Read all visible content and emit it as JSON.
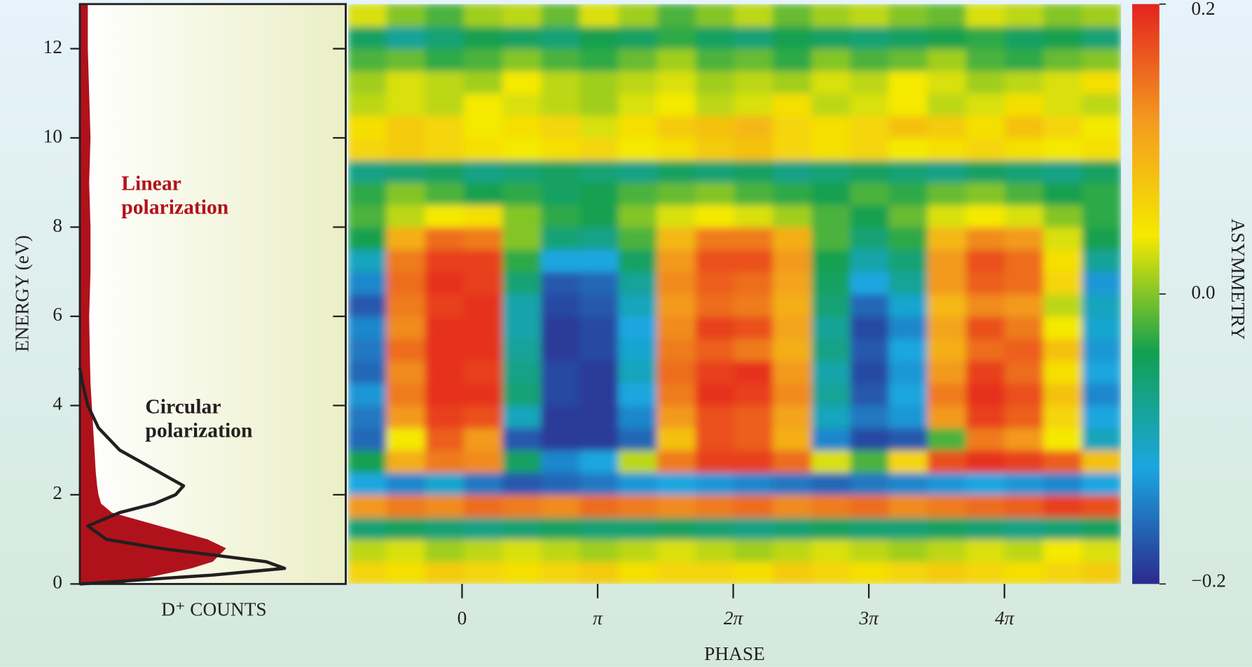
{
  "chart_data": [
    {
      "type": "line",
      "ylabel": "ENERGY (eV)",
      "xlabel": "D⁺ COUNTS",
      "ylim": [
        0,
        13
      ],
      "yticks": [
        0,
        2,
        4,
        6,
        8,
        10,
        12
      ],
      "xlim": [
        0,
        1
      ],
      "series": [
        {
          "name": [
            "Linear",
            "polarization"
          ],
          "color": "#b0121b",
          "fill": true,
          "energy": [
            0,
            0.2,
            0.35,
            0.5,
            0.8,
            1.0,
            1.3,
            1.6,
            1.8,
            2.0,
            2.2,
            2.5,
            3.0,
            3.5,
            4.0,
            4.5,
            5,
            6,
            7,
            8,
            9,
            10,
            11,
            12,
            13
          ],
          "counts": [
            0.15,
            0.3,
            0.42,
            0.5,
            0.55,
            0.48,
            0.3,
            0.12,
            0.08,
            0.07,
            0.065,
            0.06,
            0.055,
            0.05,
            0.045,
            0.04,
            0.038,
            0.035,
            0.04,
            0.04,
            0.035,
            0.04,
            0.035,
            0.03,
            0.03
          ]
        },
        {
          "name": [
            "Circular",
            "polarization"
          ],
          "color": "#231f20",
          "fill": false,
          "energy": [
            0,
            0.2,
            0.35,
            0.5,
            0.8,
            1.0,
            1.3,
            1.6,
            1.8,
            2.0,
            2.2,
            2.5,
            3.0,
            3.5,
            4.0,
            4.5,
            4.85
          ],
          "counts": [
            0.0,
            0.5,
            0.77,
            0.7,
            0.3,
            0.1,
            0.03,
            0.15,
            0.28,
            0.36,
            0.39,
            0.3,
            0.15,
            0.07,
            0.03,
            0.01,
            0.0
          ]
        }
      ]
    },
    {
      "type": "heatmap",
      "xlabel": "PHASE",
      "xlim": [
        -0.84,
        4.86
      ],
      "ylim": [
        0,
        13
      ],
      "xticks": [
        0,
        {
          "value": 1,
          "label": "π"
        },
        {
          "value": 2,
          "label": "2π"
        },
        {
          "value": 3,
          "label": "3π"
        },
        {
          "value": 4,
          "label": "4π"
        }
      ],
      "xbins": [
        -0.84,
        -0.555,
        -0.27,
        0.015,
        0.3,
        0.585,
        0.87,
        1.155,
        1.44,
        1.725,
        2.01,
        2.295,
        2.58,
        2.865,
        3.15,
        3.435,
        3.72,
        4.005,
        4.29,
        4.575,
        4.86
      ],
      "ybins": [
        0,
        0.5,
        1,
        1.5,
        2,
        2.5,
        3,
        3.5,
        4,
        4.5,
        5,
        5.5,
        6,
        6.5,
        7,
        7.5,
        8,
        8.5,
        9,
        9.5,
        10,
        10.5,
        11,
        11.5,
        12,
        12.5,
        13
      ],
      "values": [
        [
          0.06,
          0.05,
          0.07,
          0.06,
          0.05,
          0.06,
          0.07,
          0.05,
          0.06,
          0.06,
          0.05,
          0.07,
          0.06,
          0.05,
          0.06,
          0.07,
          0.06,
          0.05,
          0.06,
          0.07
        ],
        [
          0.02,
          0.03,
          0.01,
          0.02,
          0.03,
          0.02,
          0.01,
          0.02,
          0.03,
          0.02,
          0.01,
          0.02,
          0.03,
          0.02,
          0.01,
          0.02,
          0.03,
          0.02,
          0.04,
          0.03
        ],
        [
          -0.06,
          -0.05,
          -0.06,
          -0.07,
          -0.06,
          -0.05,
          -0.06,
          -0.06,
          -0.05,
          -0.06,
          -0.07,
          -0.06,
          -0.05,
          -0.06,
          -0.06,
          -0.05,
          -0.06,
          -0.07,
          -0.06,
          -0.05
        ],
        [
          0.12,
          0.14,
          0.13,
          0.15,
          0.14,
          0.13,
          0.15,
          0.14,
          0.13,
          0.14,
          0.15,
          0.13,
          0.14,
          0.15,
          0.13,
          0.14,
          0.15,
          0.16,
          0.18,
          0.17
        ],
        [
          -0.12,
          -0.14,
          -0.11,
          -0.15,
          -0.17,
          -0.16,
          -0.15,
          -0.13,
          -0.12,
          -0.13,
          -0.14,
          -0.15,
          -0.16,
          -0.15,
          -0.14,
          -0.13,
          -0.12,
          -0.13,
          -0.14,
          -0.12
        ],
        [
          -0.04,
          0.1,
          0.14,
          0.13,
          -0.05,
          -0.14,
          -0.12,
          0.02,
          0.14,
          0.18,
          0.18,
          0.15,
          0.03,
          -0.02,
          0.06,
          0.17,
          0.19,
          0.18,
          0.16,
          0.08
        ],
        [
          -0.16,
          0.04,
          0.16,
          0.12,
          -0.17,
          -0.19,
          -0.19,
          -0.16,
          0.08,
          0.17,
          0.16,
          0.1,
          -0.14,
          -0.18,
          -0.17,
          -0.02,
          0.14,
          0.12,
          0.04,
          -0.1
        ],
        [
          -0.15,
          0.12,
          0.18,
          0.17,
          -0.1,
          -0.19,
          -0.19,
          -0.14,
          0.12,
          0.17,
          0.16,
          0.11,
          -0.1,
          -0.15,
          -0.13,
          0.12,
          0.18,
          0.16,
          0.06,
          -0.12
        ],
        [
          -0.13,
          0.14,
          0.19,
          0.19,
          -0.06,
          -0.18,
          -0.19,
          -0.12,
          0.14,
          0.19,
          0.18,
          0.13,
          -0.08,
          -0.17,
          -0.12,
          0.14,
          0.19,
          0.17,
          0.08,
          -0.14
        ],
        [
          -0.16,
          0.13,
          0.19,
          0.18,
          -0.07,
          -0.18,
          -0.19,
          -0.1,
          0.15,
          0.18,
          0.19,
          0.12,
          -0.09,
          -0.18,
          -0.13,
          0.12,
          0.18,
          0.15,
          0.05,
          -0.12
        ],
        [
          -0.15,
          0.15,
          0.19,
          0.19,
          -0.08,
          -0.19,
          -0.18,
          -0.11,
          0.14,
          0.16,
          0.14,
          0.1,
          -0.07,
          -0.17,
          -0.12,
          0.1,
          0.15,
          0.16,
          0.08,
          -0.13
        ],
        [
          -0.14,
          0.13,
          0.19,
          0.19,
          -0.09,
          -0.19,
          -0.18,
          -0.12,
          0.13,
          0.18,
          0.17,
          0.11,
          -0.08,
          -0.18,
          -0.14,
          0.11,
          0.17,
          0.14,
          0.04,
          -0.11
        ],
        [
          -0.17,
          0.14,
          0.18,
          0.19,
          -0.09,
          -0.18,
          -0.17,
          -0.1,
          0.12,
          0.15,
          0.14,
          0.1,
          -0.06,
          -0.16,
          -0.11,
          0.09,
          0.13,
          0.12,
          0.02,
          -0.1
        ],
        [
          -0.14,
          0.15,
          0.19,
          0.18,
          -0.06,
          -0.17,
          -0.16,
          -0.08,
          0.13,
          0.16,
          0.15,
          0.11,
          -0.05,
          -0.12,
          -0.08,
          0.12,
          0.16,
          0.15,
          0.06,
          -0.13
        ],
        [
          -0.1,
          0.14,
          0.18,
          0.18,
          -0.03,
          -0.12,
          -0.12,
          -0.05,
          0.12,
          0.17,
          0.17,
          0.12,
          -0.04,
          -0.09,
          -0.06,
          0.12,
          0.17,
          0.15,
          0.05,
          -0.08
        ],
        [
          -0.04,
          0.1,
          0.15,
          0.14,
          0.0,
          -0.06,
          -0.07,
          -0.02,
          0.09,
          0.14,
          0.14,
          0.1,
          -0.02,
          -0.06,
          -0.03,
          0.09,
          0.13,
          0.12,
          0.03,
          -0.04
        ],
        [
          -0.02,
          0.02,
          0.04,
          0.05,
          0.0,
          -0.03,
          -0.04,
          0.0,
          0.03,
          0.04,
          0.03,
          0.01,
          -0.02,
          -0.04,
          -0.01,
          0.03,
          0.04,
          0.03,
          0.0,
          -0.03
        ],
        [
          -0.03,
          0.0,
          -0.02,
          -0.04,
          -0.03,
          -0.05,
          -0.04,
          -0.02,
          -0.01,
          0.0,
          -0.02,
          -0.03,
          -0.04,
          -0.02,
          -0.03,
          -0.01,
          0.0,
          -0.02,
          -0.04,
          -0.03
        ],
        [
          -0.07,
          -0.06,
          -0.05,
          -0.07,
          -0.06,
          -0.05,
          -0.06,
          -0.07,
          -0.05,
          -0.06,
          -0.05,
          -0.07,
          -0.06,
          -0.05,
          -0.06,
          -0.07,
          -0.05,
          -0.06,
          -0.07,
          -0.05
        ],
        [
          0.06,
          0.07,
          0.06,
          0.05,
          0.04,
          0.05,
          0.06,
          0.04,
          0.05,
          0.07,
          0.08,
          0.06,
          0.05,
          0.06,
          0.04,
          0.05,
          0.06,
          0.05,
          0.04,
          0.05
        ],
        [
          0.05,
          0.07,
          0.06,
          0.04,
          0.05,
          0.06,
          0.03,
          0.05,
          0.07,
          0.08,
          0.09,
          0.06,
          0.05,
          0.06,
          0.08,
          0.07,
          0.05,
          0.08,
          0.06,
          0.04
        ],
        [
          0.02,
          0.03,
          0.02,
          0.04,
          0.03,
          0.02,
          0.01,
          0.03,
          0.04,
          0.02,
          0.03,
          0.05,
          0.02,
          0.03,
          0.04,
          0.02,
          0.03,
          0.05,
          0.03,
          0.02
        ],
        [
          0.01,
          0.03,
          0.02,
          0.01,
          0.04,
          0.02,
          0.01,
          0.02,
          0.03,
          0.01,
          0.02,
          0.01,
          0.03,
          0.02,
          0.04,
          0.03,
          0.01,
          0.02,
          0.03,
          0.05
        ],
        [
          -0.02,
          -0.01,
          -0.03,
          -0.02,
          0.0,
          -0.02,
          -0.03,
          -0.01,
          0.01,
          -0.02,
          -0.01,
          -0.03,
          0.0,
          -0.02,
          -0.01,
          0.01,
          -0.02,
          -0.03,
          -0.01,
          0.0
        ],
        [
          -0.05,
          -0.08,
          -0.06,
          -0.04,
          -0.05,
          -0.06,
          -0.04,
          -0.05,
          -0.03,
          -0.05,
          -0.06,
          -0.04,
          -0.05,
          -0.06,
          -0.05,
          -0.04,
          -0.03,
          -0.05,
          -0.04,
          -0.06
        ],
        [
          0.03,
          0.0,
          -0.02,
          0.01,
          0.02,
          -0.01,
          0.03,
          0.01,
          -0.02,
          0.0,
          0.02,
          -0.01,
          0.01,
          0.02,
          0.0,
          -0.01,
          0.03,
          0.02,
          0.0,
          0.01
        ]
      ],
      "colorbar": {
        "title": "ASYMMETRY",
        "lim": [
          -0.2,
          0.2
        ],
        "ticks": [
          0.2,
          {
            "value": 0,
            "label": "0.0"
          },
          {
            "value": -0.2,
            "label": "−0.2"
          }
        ],
        "colors": [
          "#2b2a8e",
          "#1aa6e0",
          "#12a050",
          "#f5e900",
          "#f39a1f",
          "#e4231f"
        ]
      }
    }
  ]
}
